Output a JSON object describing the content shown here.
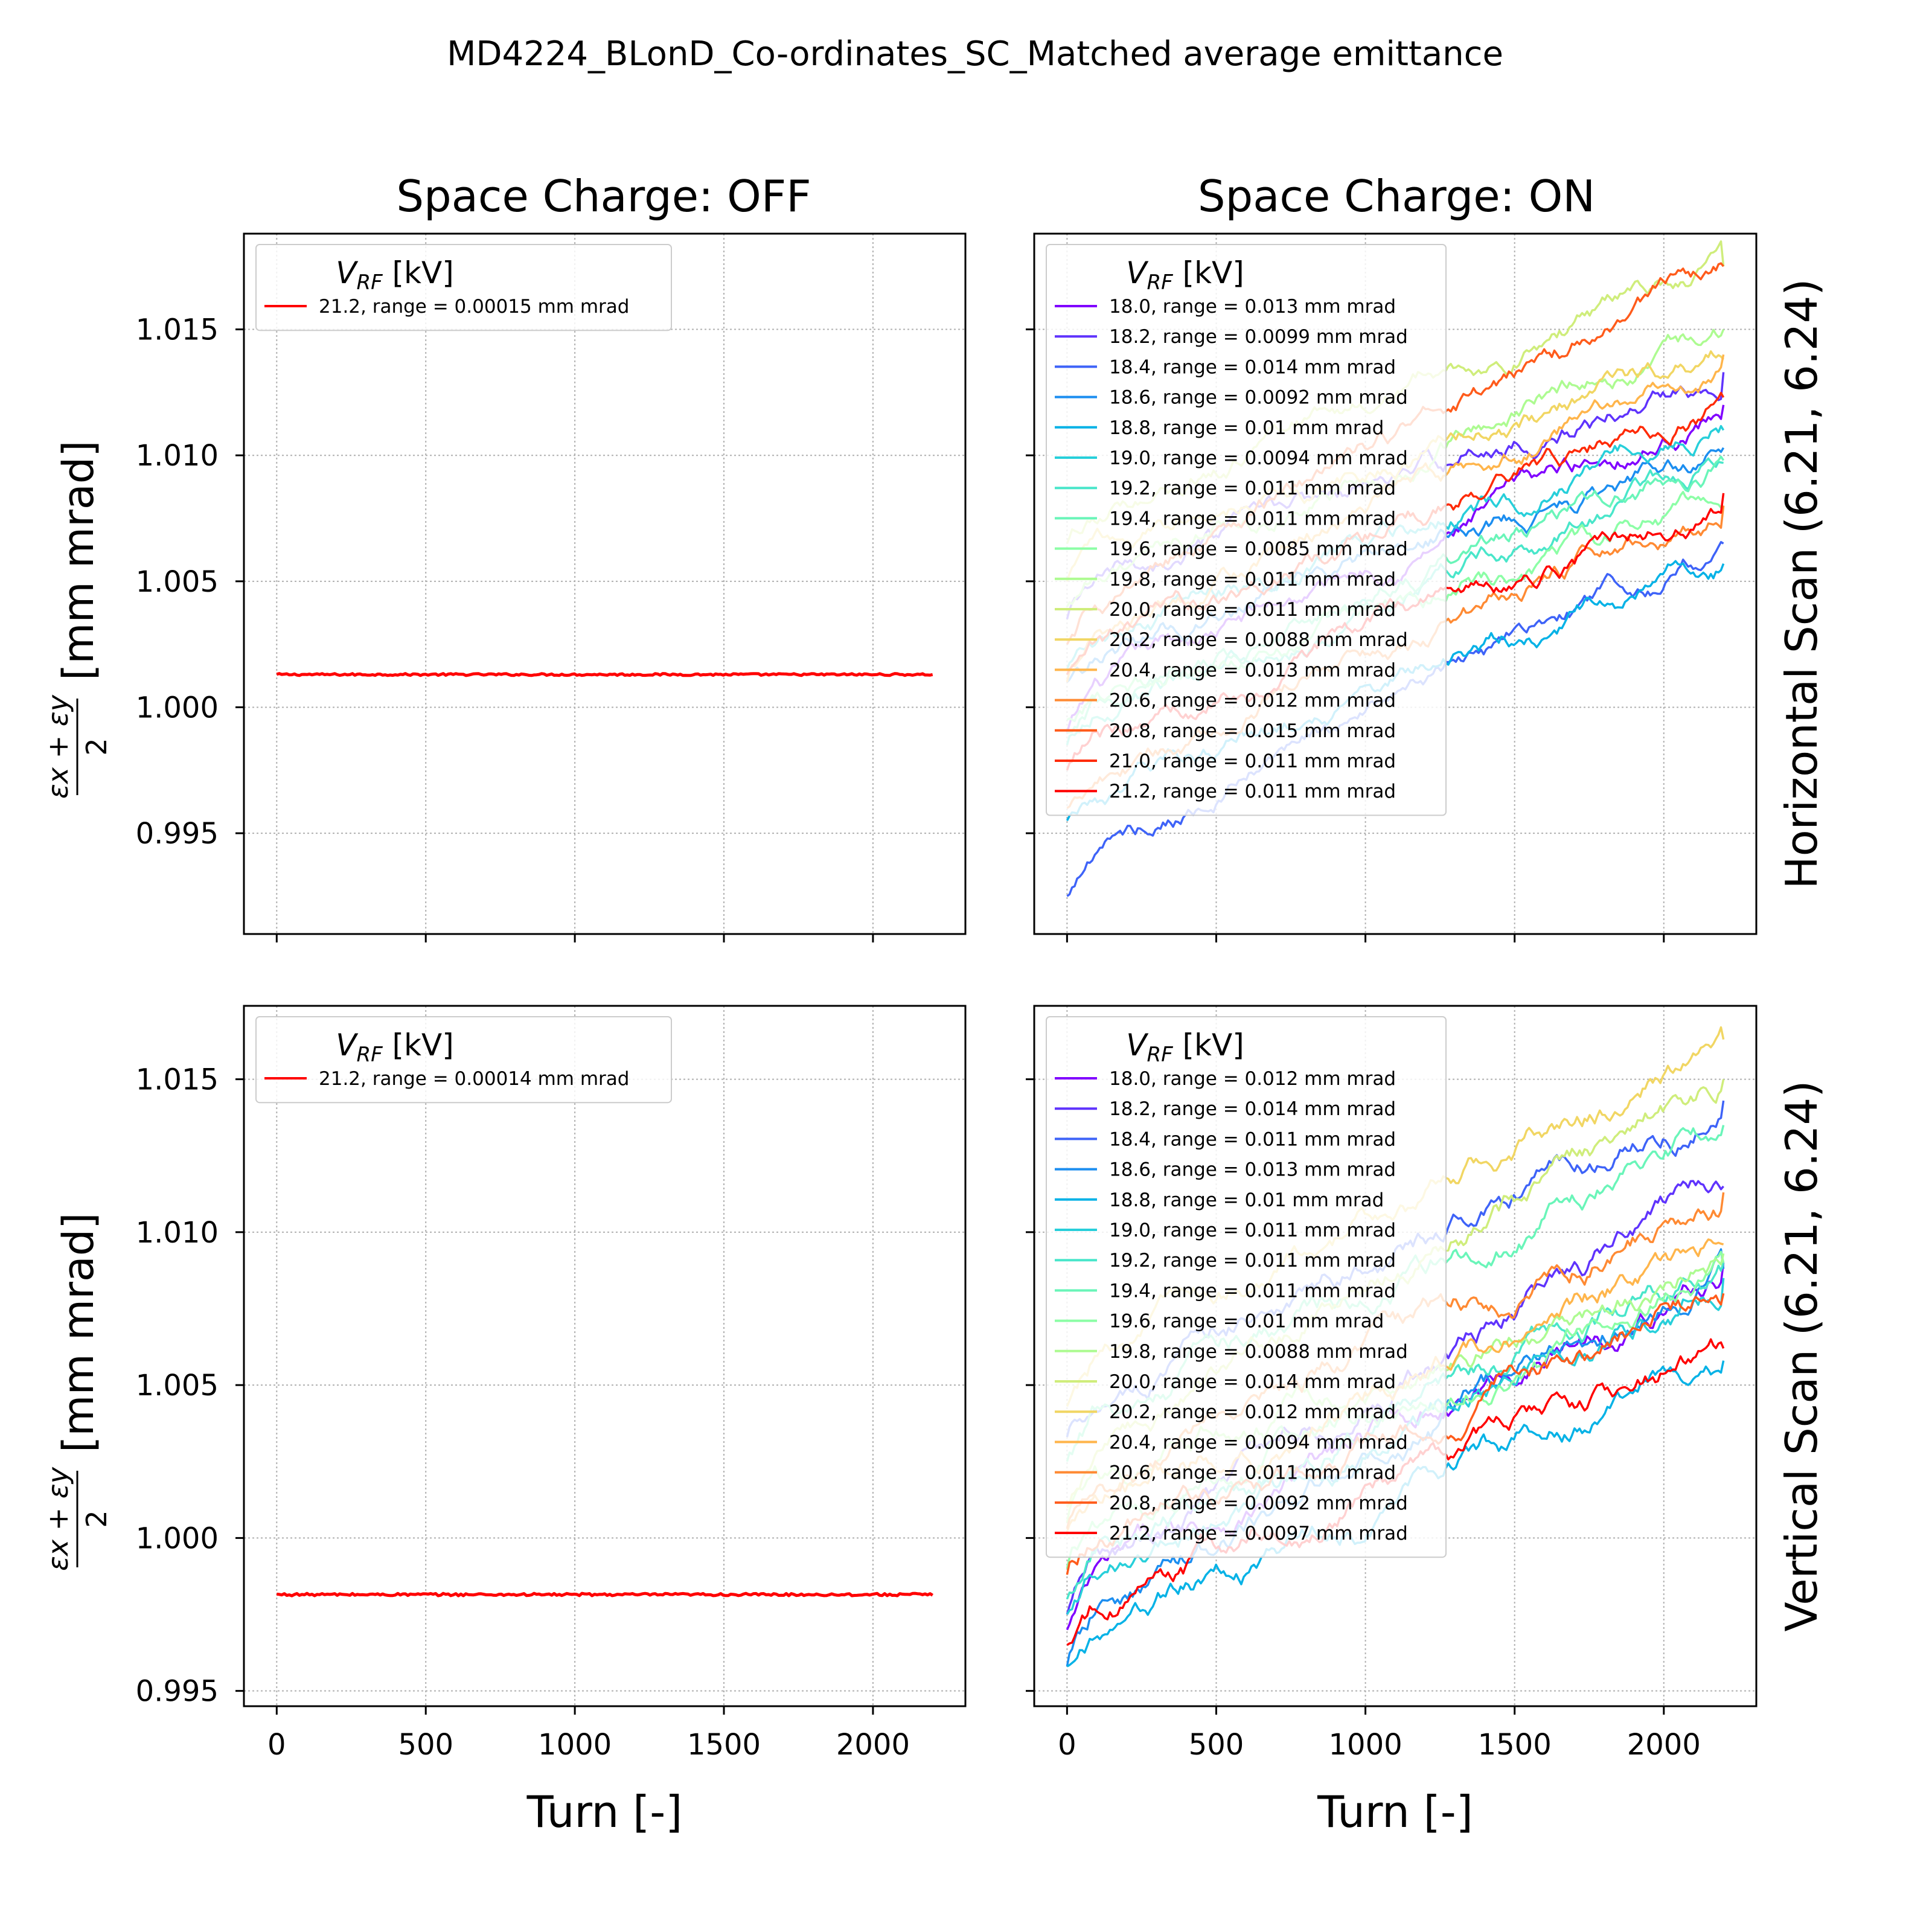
{
  "figure": {
    "suptitle": "MD4224_BLonD_Co-ordinates_SC_Matched average emittance",
    "col_titles": [
      "Space Charge: OFF",
      "Space Charge: ON"
    ],
    "row_labels": [
      "Horizontal Scan (6.21, 6.24)",
      "Vertical Scan (6.21, 6.24)"
    ],
    "ylabel_fraction_num": "εx + εy",
    "ylabel_fraction_den": "2",
    "ylabel_unit": "[mm mrad]",
    "xlabel": "Turn [-]",
    "legend_title": "V_RF [kV]",
    "colors": {
      "18.0": "#8000ff",
      "18.2": "#5f33fd",
      "18.4": "#3e63f8",
      "18.6": "#1c8ef0",
      "18.8": "#05b2e6",
      "19.0": "#27cfda",
      "19.2": "#49e6ca",
      "19.4": "#6af5b9",
      "19.6": "#8cfea6",
      "19.8": "#adfb91",
      "20.0": "#cfed7b",
      "20.2": "#f1d663",
      "20.4": "#ffb54b",
      "20.6": "#ff8a33",
      "20.8": "#ff5b1b",
      "21.0": "#ff2a05",
      "21.2": "#ff0000"
    }
  },
  "chart_data": [
    {
      "type": "line",
      "title": "Space Charge: OFF",
      "row_label": "",
      "xlabel": "",
      "ylabel": "(εx + εy)/2 [mm mrad]",
      "xlim": [
        -110,
        2310
      ],
      "ylim": [
        0.991,
        1.0188
      ],
      "xticks": [
        0,
        500,
        1000,
        1500,
        2000
      ],
      "yticks": [
        0.995,
        1.0,
        1.005,
        1.01,
        1.015
      ],
      "ytick_labels": [
        "0.995",
        "1.000",
        "1.005",
        "1.010",
        "1.015"
      ],
      "grid": true,
      "legend_placement": "top-left",
      "series": [
        {
          "name": "21.2, range = 0.00015 mm mrad",
          "key": "21.2",
          "x": [
            0,
            2200
          ],
          "y": [
            1.0013,
            1.0013
          ]
        }
      ]
    },
    {
      "type": "line",
      "title": "Space Charge: ON",
      "row_label": "Horizontal Scan (6.21, 6.24)",
      "xlabel": "",
      "ylabel": "",
      "xlim": [
        -110,
        2310
      ],
      "ylim": [
        0.991,
        1.0188
      ],
      "xticks": [
        0,
        500,
        1000,
        1500,
        2000
      ],
      "yticks": [
        0.995,
        1.0,
        1.005,
        1.01,
        1.015
      ],
      "grid": true,
      "legend_placement": "top-left",
      "series": [
        {
          "name": "18.0, range = 0.013 mm mrad",
          "key": "18.0",
          "x": [
            0,
            2200
          ],
          "y": [
            0.999,
            1.012
          ]
        },
        {
          "name": "18.2, range = 0.0099 mm mrad",
          "key": "18.2",
          "x": [
            0,
            2200
          ],
          "y": [
            1.0035,
            1.0133
          ]
        },
        {
          "name": "18.4, range = 0.014 mm mrad",
          "key": "18.4",
          "x": [
            0,
            2200
          ],
          "y": [
            0.9925,
            1.0065
          ]
        },
        {
          "name": "18.6, range = 0.0092 mm mrad",
          "key": "18.6",
          "x": [
            0,
            2200
          ],
          "y": [
            1.001,
            1.0103
          ]
        },
        {
          "name": "18.8, range = 0.01 mm mrad",
          "key": "18.8",
          "x": [
            0,
            2200
          ],
          "y": [
            0.9955,
            1.0057
          ]
        },
        {
          "name": "19.0, range = 0.0094 mm mrad",
          "key": "19.0",
          "x": [
            0,
            2200
          ],
          "y": [
            1.0015,
            1.011
          ]
        },
        {
          "name": "19.2, range = 0.011 mm mrad",
          "key": "19.2",
          "x": [
            0,
            2200
          ],
          "y": [
            0.9985,
            1.0097
          ]
        },
        {
          "name": "19.4, range = 0.011 mm mrad",
          "key": "19.4",
          "x": [
            0,
            2200
          ],
          "y": [
            0.999,
            1.0098
          ]
        },
        {
          "name": "19.6, range = 0.0085 mm mrad",
          "key": "19.6",
          "x": [
            0,
            2200
          ],
          "y": [
            0.9995,
            1.008
          ]
        },
        {
          "name": "19.8, range = 0.011 mm mrad",
          "key": "19.8",
          "x": [
            0,
            2200
          ],
          "y": [
            1.004,
            1.015
          ]
        },
        {
          "name": "20.0, range = 0.011 mm mrad",
          "key": "20.0",
          "x": [
            0,
            2200
          ],
          "y": [
            1.0065,
            1.0175
          ]
        },
        {
          "name": "20.2, range = 0.0088 mm mrad",
          "key": "20.2",
          "x": [
            0,
            2200
          ],
          "y": [
            1.005,
            1.0138
          ]
        },
        {
          "name": "20.4, range = 0.013 mm mrad",
          "key": "20.4",
          "x": [
            0,
            2200
          ],
          "y": [
            1.001,
            1.014
          ]
        },
        {
          "name": "20.6, range = 0.012 mm mrad",
          "key": "20.6",
          "x": [
            0,
            2200
          ],
          "y": [
            0.996,
            1.008
          ]
        },
        {
          "name": "20.8, range = 0.015 mm mrad",
          "key": "20.8",
          "x": [
            0,
            2200
          ],
          "y": [
            1.0025,
            1.0175
          ]
        },
        {
          "name": "21.0, range = 0.011 mm mrad",
          "key": "21.0",
          "x": [
            0,
            2200
          ],
          "y": [
            1.0013,
            1.0123
          ]
        },
        {
          "name": "21.2, range = 0.011 mm mrad",
          "key": "21.2",
          "x": [
            0,
            2200
          ],
          "y": [
            0.9975,
            1.0085
          ]
        }
      ]
    },
    {
      "type": "line",
      "title": "",
      "row_label": "",
      "xlabel": "Turn [-]",
      "ylabel": "(εx + εy)/2 [mm mrad]",
      "xlim": [
        -110,
        2310
      ],
      "ylim": [
        0.9945,
        1.0174
      ],
      "xticks": [
        0,
        500,
        1000,
        1500,
        2000
      ],
      "xtick_labels": [
        "0",
        "500",
        "1000",
        "1500",
        "2000"
      ],
      "yticks": [
        0.995,
        1.0,
        1.005,
        1.01,
        1.015
      ],
      "ytick_labels": [
        "0.995",
        "1.000",
        "1.005",
        "1.010",
        "1.015"
      ],
      "grid": true,
      "legend_placement": "top-left",
      "series": [
        {
          "name": "21.2, range = 0.00014 mm mrad",
          "key": "21.2",
          "x": [
            0,
            2200
          ],
          "y": [
            0.99815,
            0.99815
          ]
        }
      ]
    },
    {
      "type": "line",
      "title": "",
      "row_label": "Vertical Scan (6.21, 6.24)",
      "xlabel": "Turn [-]",
      "ylabel": "",
      "xlim": [
        -110,
        2310
      ],
      "ylim": [
        0.9945,
        1.0174
      ],
      "xticks": [
        0,
        500,
        1000,
        1500,
        2000
      ],
      "xtick_labels": [
        "0",
        "500",
        "1000",
        "1500",
        "2000"
      ],
      "yticks": [
        0.995,
        1.0,
        1.005,
        1.01,
        1.015
      ],
      "grid": true,
      "legend_placement": "top-left",
      "series": [
        {
          "name": "18.0, range = 0.012 mm mrad",
          "key": "18.0",
          "x": [
            0,
            2200
          ],
          "y": [
            0.997,
            1.009
          ]
        },
        {
          "name": "18.2, range = 0.014 mm mrad",
          "key": "18.2",
          "x": [
            0,
            2200
          ],
          "y": [
            0.9975,
            1.0115
          ]
        },
        {
          "name": "18.4, range = 0.011 mm mrad",
          "key": "18.4",
          "x": [
            0,
            2200
          ],
          "y": [
            1.0033,
            1.0143
          ]
        },
        {
          "name": "18.6, range = 0.013 mm mrad",
          "key": "18.6",
          "x": [
            0,
            2200
          ],
          "y": [
            0.9958,
            1.0088
          ]
        },
        {
          "name": "18.8, range = 0.01 mm mrad",
          "key": "18.8",
          "x": [
            0,
            2200
          ],
          "y": [
            0.9958,
            1.0058
          ]
        },
        {
          "name": "19.0, range = 0.011 mm mrad",
          "key": "19.0",
          "x": [
            0,
            2200
          ],
          "y": [
            0.9975,
            1.0085
          ]
        },
        {
          "name": "19.2, range = 0.011 mm mrad",
          "key": "19.2",
          "x": [
            0,
            2200
          ],
          "y": [
            0.998,
            1.009
          ]
        },
        {
          "name": "19.4, range = 0.011 mm mrad",
          "key": "19.4",
          "x": [
            0,
            2200
          ],
          "y": [
            1.0025,
            1.0135
          ]
        },
        {
          "name": "19.6, range = 0.01 mm mrad",
          "key": "19.6",
          "x": [
            0,
            2200
          ],
          "y": [
            0.999,
            1.009
          ]
        },
        {
          "name": "19.8, range = 0.0088 mm mrad",
          "key": "19.8",
          "x": [
            0,
            2200
          ],
          "y": [
            1.0005,
            1.0093
          ]
        },
        {
          "name": "20.0, range = 0.014 mm mrad",
          "key": "20.0",
          "x": [
            0,
            2200
          ],
          "y": [
            1.001,
            1.015
          ]
        },
        {
          "name": "20.2, range = 0.012 mm mrad",
          "key": "20.2",
          "x": [
            0,
            2200
          ],
          "y": [
            1.0043,
            1.0163
          ]
        },
        {
          "name": "20.4, range = 0.0094 mm mrad",
          "key": "20.4",
          "x": [
            0,
            2200
          ],
          "y": [
            1.0002,
            1.0096
          ]
        },
        {
          "name": "20.6, range = 0.011 mm mrad",
          "key": "20.6",
          "x": [
            0,
            2200
          ],
          "y": [
            1.0003,
            1.0113
          ]
        },
        {
          "name": "20.8, range = 0.0092 mm mrad",
          "key": "20.8",
          "x": [
            0,
            2200
          ],
          "y": [
            0.9988,
            1.008
          ]
        },
        {
          "name": "21.2, range = 0.0097 mm mrad",
          "key": "21.2",
          "x": [
            0,
            2200
          ],
          "y": [
            0.9965,
            1.0062
          ]
        }
      ]
    }
  ]
}
